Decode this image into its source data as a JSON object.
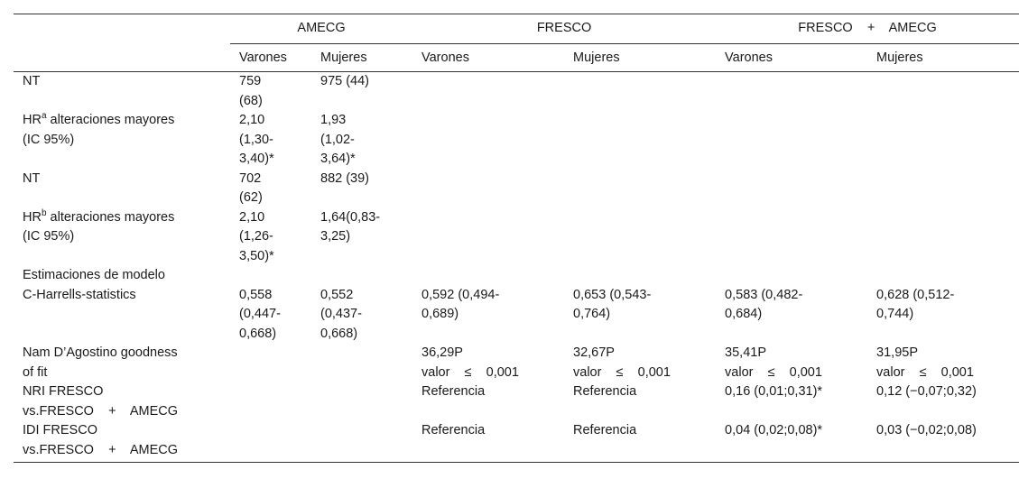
{
  "header": {
    "groups": [
      "AMECG",
      "FRESCO",
      "FRESCO    +    AMECG"
    ],
    "subheaders": [
      "Varones",
      "Mujeres",
      "Varones",
      "Mujeres",
      "Varones",
      "Mujeres"
    ]
  },
  "rows": [
    {
      "label": "NT",
      "cells": [
        "759\n(68)",
        "975 (44)",
        "",
        "",
        "",
        ""
      ]
    },
    {
      "label": "HR",
      "sup": "a",
      "label_rest": " alteraciones mayores\n(IC 95%)",
      "cells": [
        "2,10\n(1,30-\n3,40)*",
        "1,93\n(1,02-\n3,64)*",
        "",
        "",
        "",
        ""
      ]
    },
    {
      "label": "NT",
      "cells": [
        "702\n(62)",
        "882 (39)",
        "",
        "",
        "",
        ""
      ]
    },
    {
      "label": "HR",
      "sup": "b",
      "label_rest": " alteraciones mayores\n(IC 95%)",
      "cells": [
        "2,10\n(1,26-\n3,50)*",
        "1,64(0,83-\n3,25)",
        "",
        "",
        "",
        ""
      ]
    },
    {
      "label": "Estimaciones de modelo",
      "cells": [
        "",
        "",
        "",
        "",
        "",
        ""
      ]
    },
    {
      "label": "C-Harrells-statistics",
      "cells": [
        "0,558\n(0,447-\n0,668)",
        "0,552\n(0,437-\n0,668)",
        "0,592 (0,494-\n0,689)",
        "0,653 (0,543-\n0,764)",
        "0,583 (0,482-\n0,684)",
        "0,628 (0,512-\n0,744)"
      ]
    },
    {
      "label": "Nam D’Agostino goodness\nof fit",
      "cells": [
        "",
        "",
        "36,29P\nvalor    ≤    0,001",
        "32,67P\nvalor    ≤    0,001",
        "35,41P\nvalor    ≤    0,001",
        "31,95P\nvalor    ≤    0,001"
      ]
    },
    {
      "label": "NRI FRESCO\nvs.FRESCO    +    AMECG",
      "cells": [
        "",
        "",
        "Referencia",
        "Referencia",
        "0,16 (0,01;0,31)*",
        "0,12 (−0,07;0,32)"
      ]
    },
    {
      "label": "IDI FRESCO\nvs.FRESCO    +    AMECG",
      "cells": [
        "",
        "",
        "Referencia",
        "Referencia",
        "0,04 (0,02;0,08)*",
        "0,03 (−0,02;0,08)"
      ]
    }
  ]
}
